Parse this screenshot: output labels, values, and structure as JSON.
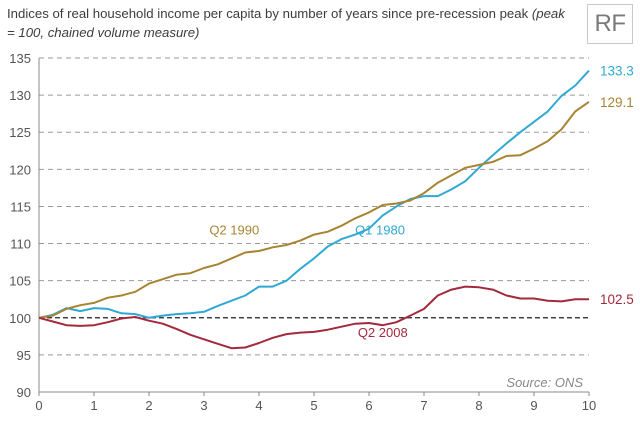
{
  "title": "Indices of real household income per capita by number of years since pre-recession peak",
  "subtitle": "(peak = 100, chained volume measure)",
  "logo": "RF",
  "chart_data": {
    "type": "line",
    "xlim": [
      0,
      10
    ],
    "ylim": [
      90,
      135
    ],
    "x_ticks": [
      0,
      1,
      2,
      3,
      4,
      5,
      6,
      7,
      8,
      9,
      10
    ],
    "y_ticks": [
      90,
      95,
      100,
      105,
      110,
      115,
      120,
      125,
      130,
      135
    ],
    "grid": "horizontal dashed",
    "reference_line": 100,
    "source": "Source: ONS",
    "series": [
      {
        "name": "Q1 1980",
        "color": "#2fa9d4",
        "end_label": "133.3",
        "x": [
          0,
          0.25,
          0.5,
          0.75,
          1,
          1.25,
          1.5,
          1.75,
          2,
          2.25,
          2.5,
          2.75,
          3,
          3.25,
          3.5,
          3.75,
          4,
          4.25,
          4.5,
          4.75,
          5,
          5.25,
          5.5,
          5.75,
          6,
          6.25,
          6.5,
          6.75,
          7,
          7.25,
          7.5,
          7.75,
          8,
          8.25,
          8.5,
          8.75,
          9,
          9.25,
          9.5,
          9.75,
          10
        ],
        "y": [
          100,
          100.4,
          101.3,
          100.9,
          101.3,
          101.2,
          100.6,
          100.5,
          100.0,
          100.3,
          100.5,
          100.6,
          100.8,
          101.6,
          102.3,
          103.0,
          104.2,
          104.2,
          105.0,
          106.6,
          108.0,
          109.6,
          110.6,
          111.2,
          112.0,
          113.8,
          115.0,
          116.0,
          116.4,
          116.4,
          117.3,
          118.4,
          120.2,
          121.9,
          123.5,
          125.0,
          126.4,
          127.8,
          129.9,
          131.3,
          133.3
        ]
      },
      {
        "name": "Q2 1990",
        "color": "#a88432",
        "end_label": "129.1",
        "x": [
          0,
          0.25,
          0.5,
          0.75,
          1,
          1.25,
          1.5,
          1.75,
          2,
          2.25,
          2.5,
          2.75,
          3,
          3.25,
          3.5,
          3.75,
          4,
          4.25,
          4.5,
          4.75,
          5,
          5.25,
          5.5,
          5.75,
          6,
          6.25,
          6.5,
          6.75,
          7,
          7.25,
          7.5,
          7.75,
          8,
          8.25,
          8.5,
          8.75,
          9,
          9.25,
          9.5,
          9.75,
          10
        ],
        "y": [
          100,
          100.3,
          101.2,
          101.7,
          102.0,
          102.7,
          103.0,
          103.5,
          104.6,
          105.2,
          105.8,
          106.0,
          106.7,
          107.2,
          108.0,
          108.8,
          109.0,
          109.5,
          109.8,
          110.4,
          111.2,
          111.6,
          112.4,
          113.4,
          114.2,
          115.2,
          115.4,
          115.8,
          116.8,
          118.2,
          119.2,
          120.2,
          120.6,
          121.0,
          121.8,
          121.9,
          122.8,
          123.8,
          125.4,
          127.8,
          129.1
        ]
      },
      {
        "name": "Q2 2008",
        "color": "#a32a3c",
        "end_label": "102.5",
        "x": [
          0,
          0.25,
          0.5,
          0.75,
          1,
          1.25,
          1.5,
          1.75,
          2,
          2.25,
          2.5,
          2.75,
          3,
          3.25,
          3.5,
          3.75,
          4,
          4.25,
          4.5,
          4.75,
          5,
          5.25,
          5.5,
          5.75,
          6,
          6.25,
          6.5,
          6.75,
          7,
          7.25,
          7.5,
          7.75,
          8,
          8.25,
          8.5,
          8.75,
          9,
          9.25,
          9.5,
          9.75,
          10
        ],
        "y": [
          100,
          99.5,
          99.0,
          98.9,
          99.0,
          99.4,
          99.9,
          100.1,
          99.6,
          99.2,
          98.5,
          97.7,
          97.1,
          96.5,
          95.9,
          96.0,
          96.6,
          97.3,
          97.8,
          98.0,
          98.1,
          98.4,
          98.8,
          99.2,
          99.3,
          99.0,
          99.4,
          100.3,
          101.2,
          103.0,
          103.8,
          104.2,
          104.1,
          103.8,
          103.0,
          102.6,
          102.6,
          102.3,
          102.2,
          102.5,
          102.5
        ]
      }
    ],
    "annotations": [
      {
        "text": "Q2 1990",
        "x": 3.55,
        "y": 111.2,
        "color": "#a88432"
      },
      {
        "text": "Q1 1980",
        "x": 6.2,
        "y": 111.2,
        "color": "#2fa9d4"
      },
      {
        "text": "Q2 2008",
        "x": 6.25,
        "y": 97.4,
        "color": "#a32a3c"
      }
    ]
  }
}
